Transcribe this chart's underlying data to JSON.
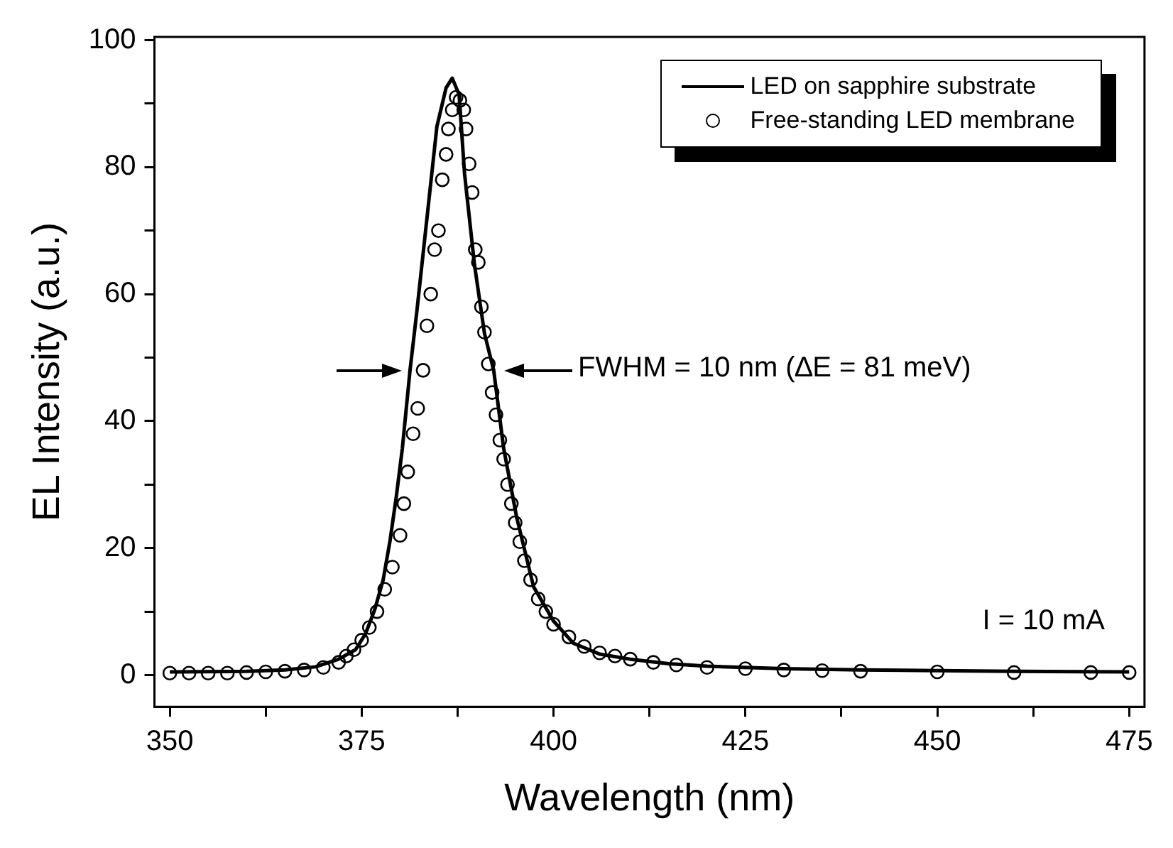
{
  "chart_data": {
    "type": "line",
    "xlabel": "Wavelength (nm)",
    "ylabel": "EL Intensity (a.u.)",
    "xlim": [
      348,
      477
    ],
    "ylim": [
      -5,
      100.5
    ],
    "xticks": [
      350,
      {
        "value": 362.5,
        "label": null
      },
      375,
      {
        "value": 387.5,
        "label": null
      },
      400,
      {
        "value": 412.5,
        "label": null
      },
      425,
      {
        "value": 437.5,
        "label": null
      },
      450,
      {
        "value": 462.5,
        "label": null
      },
      475
    ],
    "yticks": [
      0,
      {
        "value": 10,
        "label": null
      },
      20,
      {
        "value": 30,
        "label": null
      },
      40,
      {
        "value": 50,
        "label": null
      },
      60,
      {
        "value": 70,
        "label": null
      },
      80,
      {
        "value": 90,
        "label": null
      },
      100
    ],
    "grid": false,
    "legend": "top right",
    "series": [
      {
        "name": "LED on sapphire substrate",
        "color": "#000000",
        "marker": "none",
        "line_style": "solid",
        "x": [
          350,
          360,
          365,
          369,
          372,
          374.2,
          375.5,
          376.7,
          377.8,
          378.7,
          379.5,
          380.3,
          381.3,
          382.2,
          383.5,
          384.8,
          386,
          386.8,
          387.7,
          388.4,
          389.7,
          391,
          392.2,
          393.5,
          395.2,
          397.4,
          400,
          402.6,
          406,
          410,
          415,
          420,
          430,
          440,
          450,
          460,
          475
        ],
        "values": [
          0.5,
          0.6,
          0.8,
          1.3,
          2.5,
          4,
          6.5,
          10.3,
          15,
          21.2,
          28,
          35.7,
          48,
          57.4,
          71.9,
          86.4,
          92.5,
          94,
          91.4,
          79,
          64.6,
          53.8,
          48,
          35.7,
          24.8,
          13.9,
          8.5,
          5,
          3.3,
          2.5,
          1.8,
          1.4,
          1,
          0.8,
          0.7,
          0.6,
          0.5
        ]
      },
      {
        "name": "Free-standing LED membrane",
        "type": "scatter",
        "color": "#000000",
        "marker": "circle",
        "x": [
          350,
          352.5,
          355,
          357.5,
          360,
          362.5,
          365,
          367.5,
          370,
          372,
          373,
          374,
          375,
          376,
          377,
          378,
          379,
          380,
          380.5,
          381,
          381.7,
          382.3,
          383,
          383.5,
          384,
          384.5,
          385,
          385.5,
          386,
          386.3,
          386.8,
          387.3,
          387.8,
          388.3,
          388.6,
          389,
          389.4,
          389.8,
          390.2,
          390.6,
          391,
          391.5,
          392,
          392.5,
          393,
          393.5,
          394,
          394.5,
          395,
          395.6,
          396.2,
          397,
          398,
          399,
          400,
          402,
          404,
          406,
          408,
          410,
          413,
          416,
          420,
          425,
          430,
          435,
          440,
          450,
          460,
          470,
          475
        ],
        "values": [
          0.3,
          0.3,
          0.3,
          0.3,
          0.4,
          0.5,
          0.6,
          0.8,
          1.2,
          2,
          3,
          4,
          5.5,
          7.5,
          10,
          13.5,
          17,
          22,
          27,
          32,
          38,
          42,
          48,
          55,
          60,
          67,
          70,
          78,
          82,
          86,
          89,
          91,
          90.5,
          89,
          86,
          80.5,
          76,
          67,
          65,
          58,
          54,
          49,
          44.5,
          41,
          37,
          34,
          30,
          27,
          24,
          21,
          18,
          15,
          12,
          10,
          8,
          6,
          4.5,
          3.5,
          3,
          2.5,
          2,
          1.6,
          1.2,
          1,
          0.8,
          0.7,
          0.6,
          0.5,
          0.4,
          0.4,
          0.4
        ]
      }
    ],
    "annotations": [
      {
        "text": "FWHM = 10 nm (∆E = 81 meV)",
        "x": 393.2,
        "y": 48
      },
      "I = 10 mA"
    ]
  }
}
